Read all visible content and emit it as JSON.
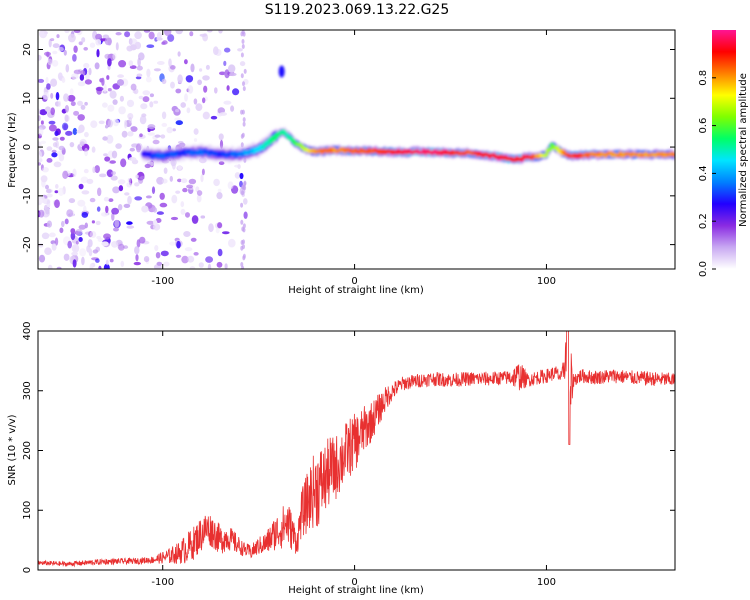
{
  "figure": {
    "title": "S119.2023.069.13.22.G25"
  },
  "chart_data": [
    {
      "type": "heatmap",
      "title": "",
      "xlabel": "Height of straight line (km)",
      "ylabel": "Frequency (Hz)",
      "xlim": [
        -165,
        167
      ],
      "ylim": [
        -25,
        24
      ],
      "xticks": [
        -100,
        0,
        100
      ],
      "yticks": [
        -20,
        -10,
        0,
        10,
        20
      ],
      "colorbar": {
        "label": "Normalized spectral amplitude",
        "range": [
          0,
          1
        ],
        "ticks": [
          0.0,
          0.2,
          0.4,
          0.6,
          0.8
        ],
        "colormap": [
          "#ffffff",
          "#c8a8f2",
          "#8a2be2",
          "#2200ff",
          "#0080ff",
          "#00e5ff",
          "#00ff66",
          "#7fff00",
          "#ffff00",
          "#ff8000",
          "#ff0000",
          "#ff1493"
        ]
      },
      "ridge": {
        "x": [
          -110,
          -100,
          -90,
          -80,
          -70,
          -60,
          -50,
          -45,
          -40,
          -37,
          -34,
          -30,
          -25,
          -20,
          -15,
          -10,
          0,
          10,
          20,
          30,
          40,
          50,
          60,
          70,
          75,
          80,
          85,
          90,
          95,
          100,
          103,
          106,
          110,
          115,
          120,
          130,
          140,
          150,
          160,
          167
        ],
        "y": [
          -1.5,
          -1.8,
          -1.2,
          -1.0,
          -1.5,
          -1.5,
          -0.5,
          1.0,
          2.5,
          3.2,
          2.0,
          0.5,
          -0.5,
          -1.0,
          -0.8,
          -0.6,
          -0.8,
          -0.8,
          -1.0,
          -1.0,
          -1.0,
          -1.2,
          -1.2,
          -1.8,
          -2.0,
          -2.5,
          -2.5,
          -2.0,
          -2.0,
          -1.5,
          0.5,
          -0.5,
          -1.5,
          -1.8,
          -1.6,
          -1.5,
          -1.5,
          -1.5,
          -1.5,
          -1.5
        ],
        "amplitude": [
          0.25,
          0.35,
          0.3,
          0.35,
          0.3,
          0.35,
          0.45,
          0.5,
          0.55,
          0.5,
          0.5,
          0.6,
          0.7,
          0.8,
          0.85,
          0.8,
          0.85,
          0.85,
          0.9,
          0.95,
          0.98,
          0.9,
          0.85,
          0.92,
          0.95,
          0.9,
          0.9,
          0.95,
          0.8,
          0.7,
          0.6,
          0.7,
          0.85,
          0.9,
          0.85,
          0.8,
          0.8,
          0.8,
          0.8,
          0.8
        ]
      },
      "noise_region": {
        "x_range": [
          -165,
          -55
        ],
        "description_level": "scattered low-amplitude speckle"
      }
    },
    {
      "type": "line",
      "title": "",
      "xlabel": "Height of straight line (km)",
      "ylabel": "SNR (10 * v/v)",
      "xlim": [
        -165,
        167
      ],
      "ylim": [
        0,
        400
      ],
      "xticks": [
        -100,
        0,
        100
      ],
      "yticks": [
        0,
        100,
        200,
        300,
        400
      ],
      "color": "#e83030",
      "series": [
        {
          "x": [
            -165,
            -150,
            -130,
            -115,
            -105,
            -98,
            -92,
            -88,
            -84,
            -80,
            -77,
            -74,
            -70,
            -66,
            -62,
            -58,
            -54,
            -50,
            -46,
            -42,
            -38,
            -35,
            -32,
            -30,
            -28,
            -25,
            -22,
            -19,
            -16,
            -13,
            -10,
            -7,
            -4,
            -1,
            2,
            5,
            8,
            11,
            14,
            17,
            20,
            25,
            30,
            35,
            40,
            50,
            60,
            70,
            80,
            86,
            90,
            95,
            100,
            105,
            108,
            110,
            112,
            114,
            118,
            125,
            135,
            145,
            155,
            167
          ],
          "y": [
            12,
            10,
            14,
            15,
            17,
            22,
            28,
            35,
            45,
            60,
            70,
            65,
            50,
            55,
            45,
            35,
            30,
            40,
            45,
            60,
            70,
            80,
            60,
            45,
            90,
            110,
            130,
            140,
            150,
            165,
            170,
            185,
            200,
            210,
            220,
            235,
            245,
            260,
            275,
            290,
            300,
            312,
            315,
            318,
            320,
            318,
            320,
            320,
            322,
            325,
            318,
            322,
            325,
            330,
            320,
            360,
            300,
            318,
            325,
            322,
            325,
            322,
            320,
            318
          ],
          "spread": [
            4,
            4,
            5,
            5,
            6,
            12,
            18,
            25,
            28,
            30,
            30,
            28,
            25,
            22,
            18,
            12,
            12,
            15,
            20,
            28,
            35,
            40,
            30,
            20,
            40,
            50,
            60,
            70,
            60,
            60,
            55,
            55,
            50,
            50,
            45,
            40,
            35,
            30,
            25,
            20,
            15,
            12,
            12,
            12,
            12,
            12,
            12,
            12,
            12,
            25,
            12,
            12,
            12,
            12,
            12,
            40,
            90,
            12,
            12,
            12,
            12,
            12,
            12,
            12
          ]
        }
      ]
    }
  ]
}
